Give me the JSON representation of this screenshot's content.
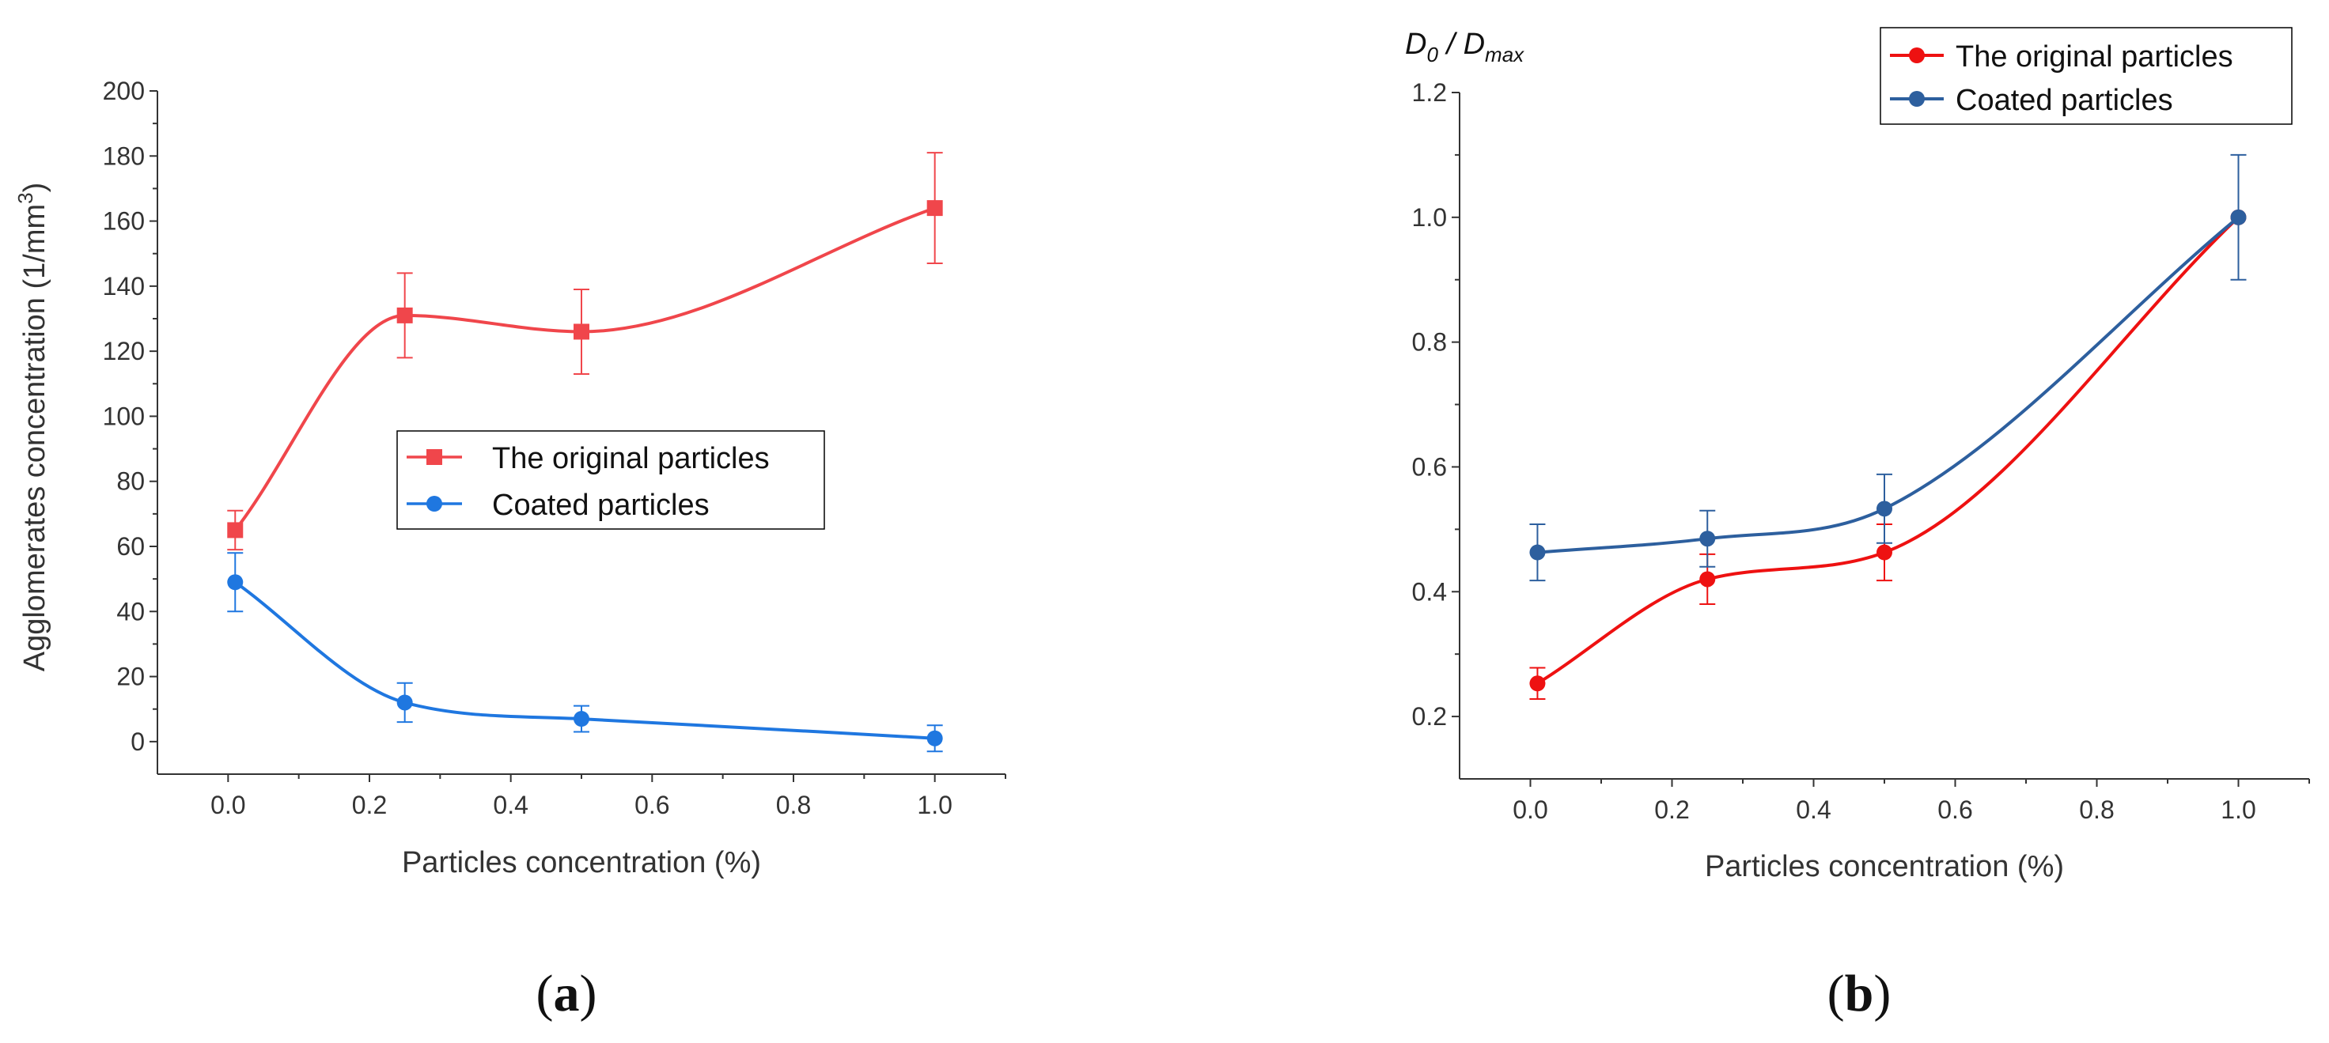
{
  "chart_data": [
    {
      "type": "line",
      "panel_label": "(a)",
      "panel_label_parts": [
        "(",
        "a",
        ")"
      ],
      "title": "",
      "xlabel": "Particles concentration (%)",
      "ylabel": "Agglomerates concentration (1/mm",
      "ylabel_sup": "3",
      "ylabel_end": ")",
      "xlim": [
        -0.1,
        1.1
      ],
      "ylim": [
        -10,
        200
      ],
      "xticks": [
        0.0,
        0.2,
        0.4,
        0.6,
        0.8,
        1.0
      ],
      "xtick_labels": [
        "0.0",
        "0.2",
        "0.4",
        "0.6",
        "0.8",
        "1.0"
      ],
      "yticks": [
        0,
        20,
        40,
        60,
        80,
        100,
        120,
        140,
        160,
        180,
        200
      ],
      "ytick_labels": [
        "0",
        "20",
        "40",
        "60",
        "80",
        "100",
        "120",
        "140",
        "160",
        "180",
        "200"
      ],
      "legend_position": "center-right",
      "series": [
        {
          "name": "The original particles",
          "color": "#f0464b",
          "marker": "square",
          "x": [
            0.01,
            0.25,
            0.5,
            1.0
          ],
          "y": [
            65,
            131,
            126,
            164
          ],
          "yerr": [
            6,
            13,
            13,
            17
          ]
        },
        {
          "name": "Coated particles",
          "color": "#1f77e0",
          "marker": "circle",
          "x": [
            0.01,
            0.25,
            0.5,
            1.0
          ],
          "y": [
            49,
            12,
            7,
            1
          ],
          "yerr": [
            9,
            6,
            4,
            4
          ]
        }
      ]
    },
    {
      "type": "line",
      "panel_label": "(b)",
      "panel_label_parts": [
        "(",
        "b",
        ")"
      ],
      "title": "",
      "xlabel": "Particles concentration (%)",
      "ylabel_main": "D",
      "ylabel_sub1": "0",
      "ylabel_mid": " / D",
      "ylabel_sub2": "max",
      "xlim": [
        -0.1,
        1.1
      ],
      "ylim": [
        0.1,
        1.2
      ],
      "xticks": [
        0.0,
        0.2,
        0.4,
        0.6,
        0.8,
        1.0
      ],
      "xtick_labels": [
        "0.0",
        "0.2",
        "0.4",
        "0.6",
        "0.8",
        "1.0"
      ],
      "yticks": [
        0.2,
        0.4,
        0.6,
        0.8,
        1.0,
        1.2
      ],
      "ytick_labels": [
        "0.2",
        "0.4",
        "0.6",
        "0.8",
        "1.0",
        "1.2"
      ],
      "legend_position": "top-right",
      "series": [
        {
          "name": "The original particles",
          "color": "#ee1111",
          "marker": "circle",
          "x": [
            0.01,
            0.25,
            0.5,
            1.0
          ],
          "y": [
            0.253,
            0.42,
            0.463,
            1.0
          ],
          "yerr": [
            0.025,
            0.04,
            0.045,
            0.0
          ]
        },
        {
          "name": "Coated particles",
          "color": "#2d5f9e",
          "marker": "circle",
          "x": [
            0.01,
            0.25,
            0.5,
            1.0
          ],
          "y": [
            0.463,
            0.485,
            0.533,
            1.0
          ],
          "yerr": [
            0.045,
            0.045,
            0.055,
            0.1
          ]
        }
      ]
    }
  ]
}
